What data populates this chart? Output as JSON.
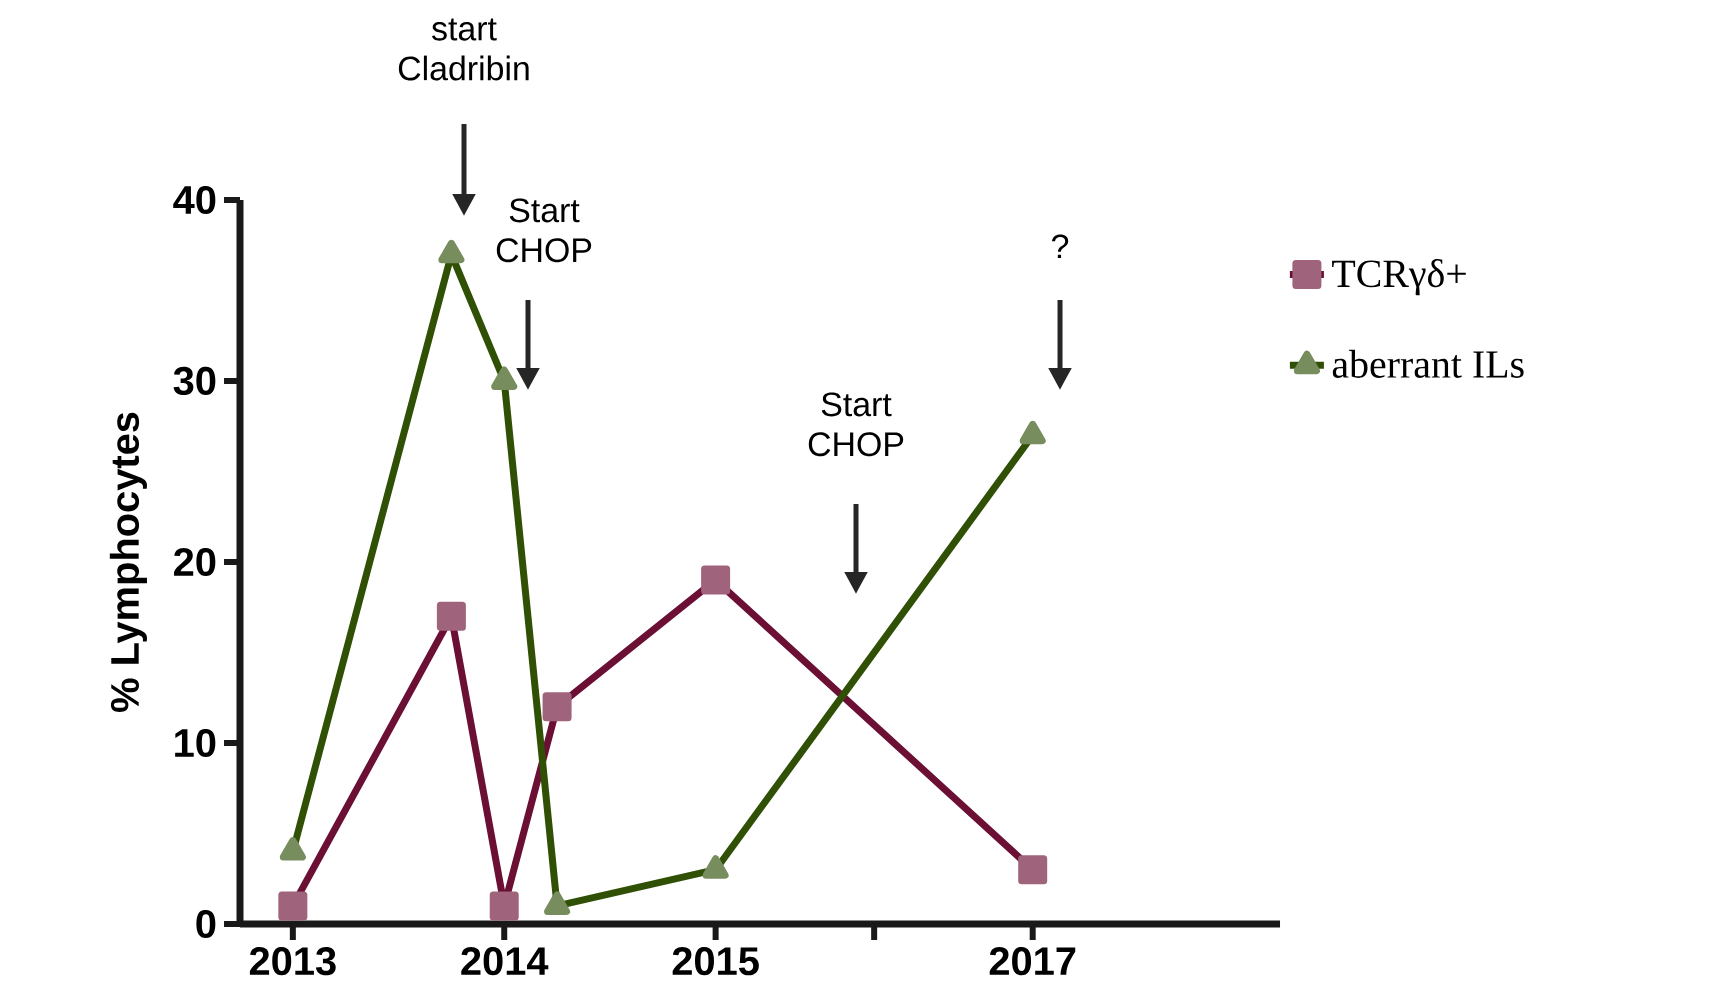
{
  "chart_data": {
    "type": "line",
    "ylabel": "% Lymphocytes",
    "xlim": [
      2012.75,
      2017.67
    ],
    "xticks": [
      2013,
      2014,
      2015,
      {
        "value": 2015.75,
        "label": null
      },
      {
        "value": 2016.5,
        "label": "2017"
      }
    ],
    "ylim": [
      0,
      40
    ],
    "yticks": [
      0,
      10,
      20,
      30,
      40
    ],
    "series": [
      {
        "name": "TCRγδ+",
        "color": "#6b0f35",
        "marker": "square",
        "x": [
          2013,
          2013.75,
          2014,
          2014.25,
          2015,
          2016.5
        ],
        "values": [
          1,
          17,
          1,
          12,
          19,
          3
        ]
      },
      {
        "name": "aberrant ILs",
        "color": "#2f5005",
        "marker": "triangle",
        "x": [
          2013,
          2013.75,
          2014,
          2014.25,
          2015,
          2016.5
        ],
        "values": [
          4,
          37,
          30,
          1,
          3,
          27
        ]
      }
    ],
    "annotations": [
      "start Cladribin",
      "Start CHOP",
      "Start CHOP",
      "?"
    ],
    "legend": "right",
    "grid": false,
    "line_style": "solid"
  }
}
